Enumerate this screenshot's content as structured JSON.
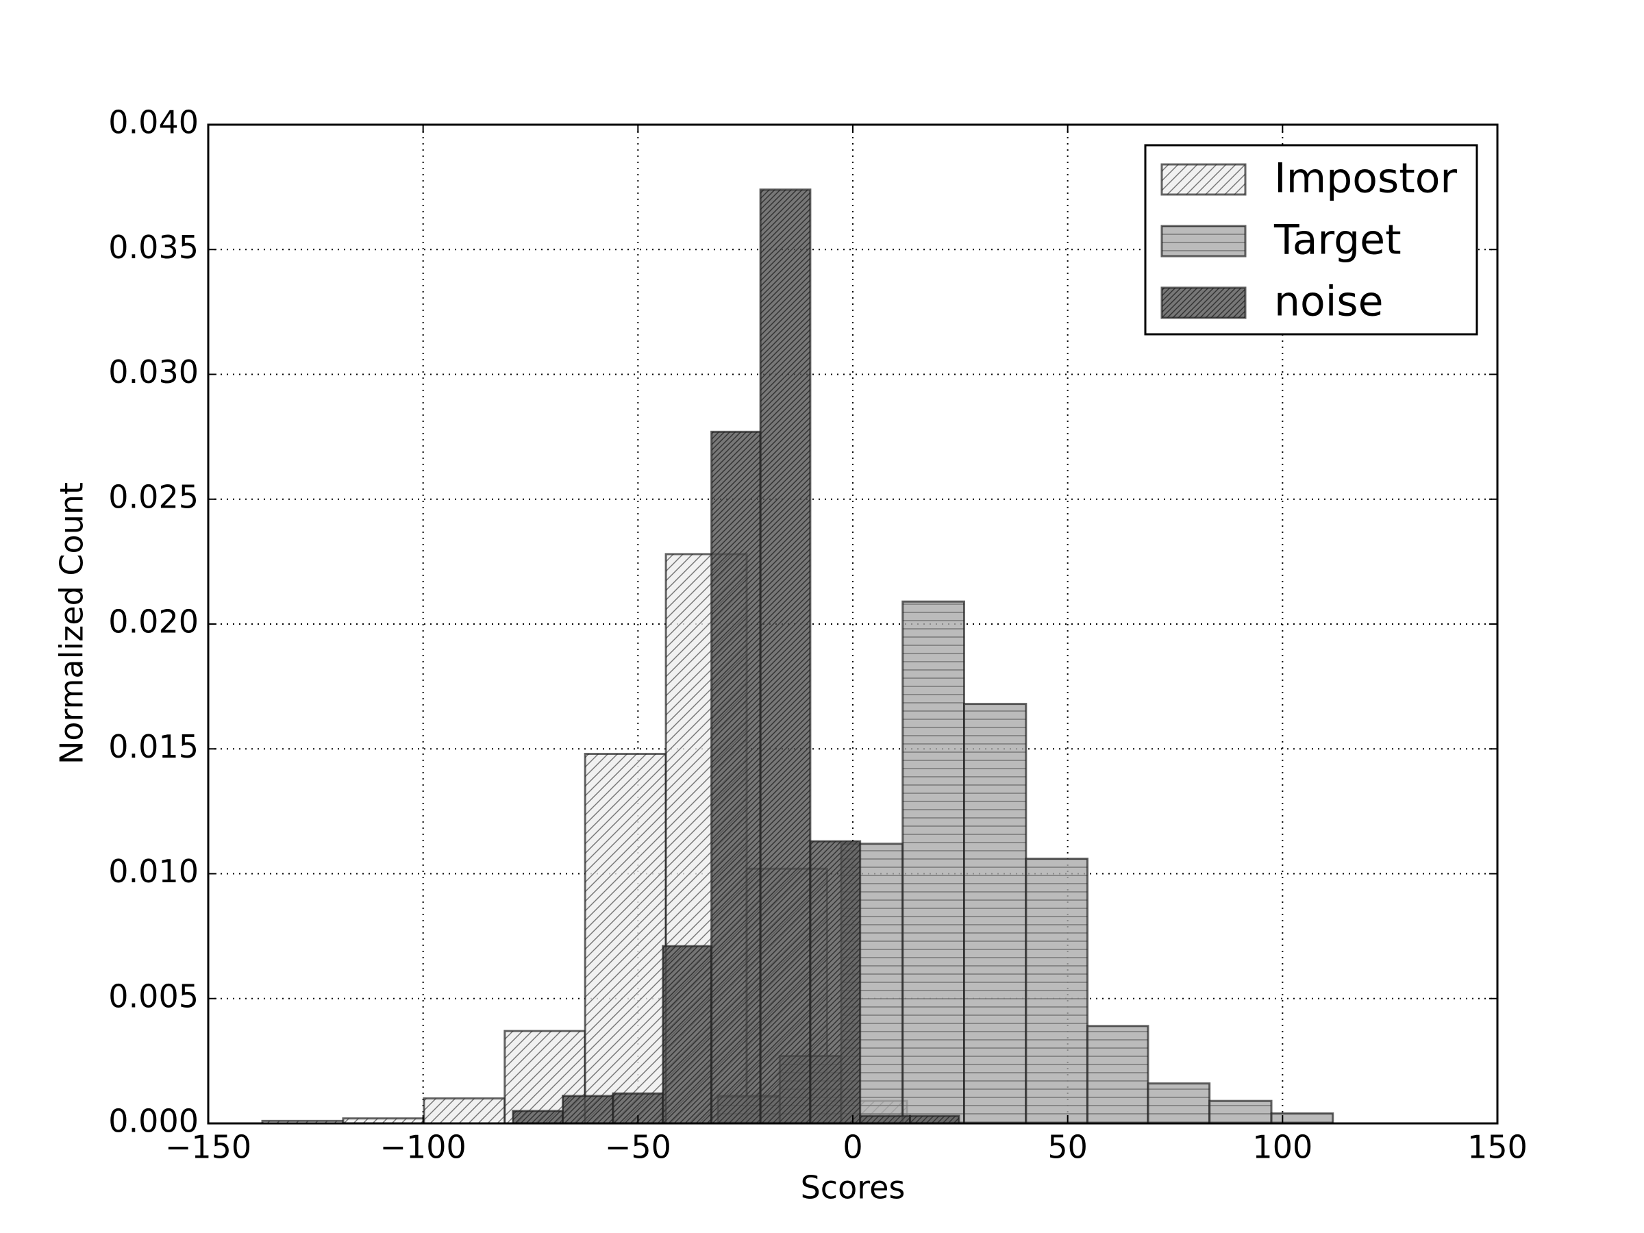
{
  "chart_data": {
    "type": "histogram",
    "xlabel": "Scores",
    "ylabel": "Normalized Count",
    "xlim": [
      -150,
      150
    ],
    "xticks": [
      {
        "value": -150,
        "label": "−150"
      },
      {
        "value": -100,
        "label": "−100"
      },
      {
        "value": -50,
        "label": "−50"
      },
      0,
      50,
      100,
      150
    ],
    "ylim": [
      0,
      0.04
    ],
    "yticks": [
      {
        "value": 0,
        "label": "0.000"
      },
      {
        "value": 0.005,
        "label": "0.005"
      },
      {
        "value": 0.01,
        "label": "0.010"
      },
      {
        "value": 0.015,
        "label": "0.015"
      },
      {
        "value": 0.02,
        "label": "0.020"
      },
      {
        "value": 0.025,
        "label": "0.025"
      },
      {
        "value": 0.03,
        "label": "0.030"
      },
      {
        "value": 0.035,
        "label": "0.035"
      },
      {
        "value": 0.04,
        "label": "0.040"
      }
    ],
    "grid": true,
    "legend": "upper right",
    "series": [
      {
        "name": "Impostor",
        "color": "#eeeeee",
        "bins": [
          -137.4,
          -118.6,
          -99.8,
          -81.0,
          -62.3,
          -43.5,
          -24.7,
          -6.0,
          12.6
        ],
        "values": [
          0.0001,
          0.0002,
          0.001,
          0.0037,
          0.0148,
          0.0228,
          0.0102,
          0.0009
        ]
      },
      {
        "name": "Target",
        "color": "#aaaaaa",
        "bins": [
          -31.4,
          -17.0,
          -2.7,
          11.6,
          25.9,
          40.3,
          54.6,
          68.7,
          83.0,
          97.4,
          111.7
        ],
        "values": [
          0.0011,
          0.0027,
          0.0112,
          0.0209,
          0.0168,
          0.0106,
          0.0039,
          0.0016,
          0.0009,
          0.0004
        ]
      },
      {
        "name": "noise",
        "color": "#555555",
        "bins": [
          -79.1,
          -67.5,
          -55.8,
          -44.2,
          -32.9,
          -21.5,
          -9.9,
          1.7,
          13.3,
          24.7
        ],
        "values": [
          0.0005,
          0.0011,
          0.0012,
          0.0071,
          0.0277,
          0.0374,
          0.0113,
          0.0003,
          0.0003
        ]
      }
    ]
  }
}
